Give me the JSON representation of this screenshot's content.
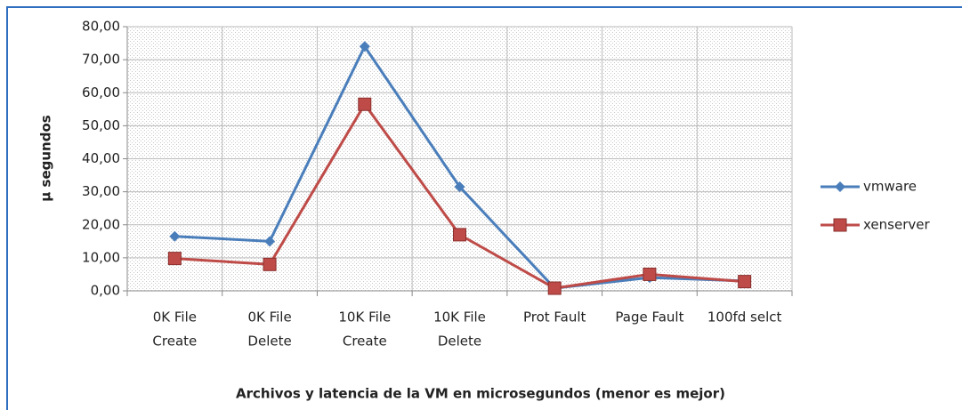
{
  "chart_data": {
    "type": "line",
    "ylabel": "µ segundos",
    "xlabel": "Archivos y latencia de la VM en microsegundos (menor es mejor)",
    "categories": [
      [
        "0K File",
        "Create"
      ],
      [
        "0K File",
        "Delete"
      ],
      [
        "10K File",
        "Create"
      ],
      [
        "10K File",
        "Delete"
      ],
      [
        "Prot Fault"
      ],
      [
        "Page Fault"
      ],
      [
        "100fd selct"
      ]
    ],
    "series": [
      {
        "name": "vmware",
        "color": "#4a7ebb",
        "marker": "diamond",
        "values": [
          16.5,
          15,
          74,
          31.5,
          0.8,
          4,
          3
        ]
      },
      {
        "name": "xenserver",
        "color": "#be4b48",
        "marker": "square",
        "values": [
          9.8,
          8,
          56.5,
          17,
          0.8,
          5,
          2.8
        ]
      }
    ],
    "ylim": [
      0,
      80
    ],
    "yticks": [
      {
        "value": 0,
        "label": "0,00"
      },
      {
        "value": 10,
        "label": "10,00"
      },
      {
        "value": 20,
        "label": "20,00"
      },
      {
        "value": 30,
        "label": "30,00"
      },
      {
        "value": 40,
        "label": "40,00"
      },
      {
        "value": 50,
        "label": "50,00"
      },
      {
        "value": 60,
        "label": "60,00"
      },
      {
        "value": 70,
        "label": "70,00"
      },
      {
        "value": 80,
        "label": "80,00"
      }
    ],
    "grid": true,
    "legend": "right"
  }
}
